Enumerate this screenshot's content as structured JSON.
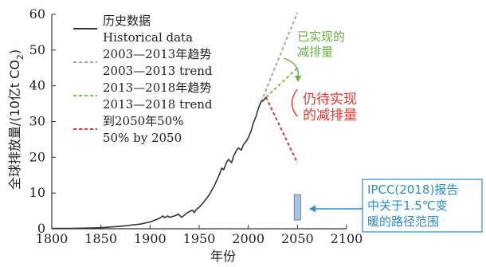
{
  "chart_data": {
    "type": "line",
    "xlabel": "年份",
    "ylabel_parts": [
      "全球排放量/(10亿t CO",
      "2",
      ")"
    ],
    "xlim": [
      1800,
      2100
    ],
    "ylim": [
      0,
      60
    ],
    "xticks": [
      "1800",
      "1850",
      "1900",
      "1950",
      "2000",
      "2050",
      "2100"
    ],
    "yticks": [
      "0",
      "10",
      "20",
      "30",
      "40",
      "50",
      "60"
    ],
    "grid": false,
    "legend_position": "top-left",
    "series": [
      {
        "name_zh": "历史数据",
        "name_en": "Historical data",
        "color": "#333333",
        "style": "solid",
        "x": [
          1800,
          1820,
          1840,
          1850,
          1860,
          1870,
          1880,
          1890,
          1900,
          1905,
          1910,
          1913,
          1915,
          1918,
          1920,
          1925,
          1929,
          1932,
          1935,
          1937,
          1940,
          1943,
          1945,
          1947,
          1950,
          1955,
          1960,
          1965,
          1970,
          1973,
          1975,
          1978,
          1980,
          1983,
          1985,
          1988,
          1990,
          1993,
          1995,
          1998,
          2000,
          2003,
          2005,
          2008,
          2010,
          2012,
          2013,
          2015,
          2018
        ],
        "y": [
          0.1,
          0.1,
          0.2,
          0.3,
          0.5,
          0.7,
          1.0,
          1.3,
          1.9,
          2.4,
          3.0,
          3.6,
          3.1,
          3.6,
          3.2,
          3.6,
          4.1,
          3.2,
          3.8,
          4.3,
          4.8,
          5.2,
          4.5,
          5.4,
          6.0,
          7.6,
          9.4,
          11.8,
          14.8,
          17.0,
          16.5,
          18.7,
          19.4,
          18.5,
          20.3,
          22.0,
          22.6,
          22.0,
          23.5,
          24.5,
          25.5,
          27.5,
          29.5,
          31.5,
          33.5,
          35.0,
          35.5,
          35.8,
          36.8
        ]
      },
      {
        "name_zh": "2003—2013年趋势",
        "name_en": "2003—2013 trend",
        "color": "#a6a6a6",
        "style": "dashed",
        "x": [
          2013,
          2050
        ],
        "y": [
          35.5,
          60.5
        ]
      },
      {
        "name_zh": "2013—2018年趋势",
        "name_en": "2013—2018 trend",
        "color": "#7cc04a",
        "style": "dashed",
        "x": [
          2018,
          2050
        ],
        "y": [
          36.8,
          45
        ]
      },
      {
        "name_zh": "到2050年50%",
        "name_en": "50% by 2050",
        "color": "#e03a30",
        "style": "dashed",
        "x": [
          2018,
          2050
        ],
        "y": [
          36.8,
          18.4
        ]
      }
    ],
    "ipcc_range": {
      "x": 2050,
      "y": [
        4,
        8
      ],
      "label_lines": [
        "IPCC(2018)报告",
        "中关于1.5℃变",
        "暖的路径范围"
      ]
    },
    "annotations": {
      "realized_reduction": [
        "已实现的",
        "减排量"
      ],
      "pending_reduction": [
        "仍待实现",
        "的减排量"
      ]
    }
  },
  "colors": {
    "axis": "#333333",
    "annotation_green": "#63b33e",
    "annotation_red": "#e03a30",
    "ipcc_blue": "#2a8dcb",
    "ipcc_fill": "#aac4e4"
  }
}
